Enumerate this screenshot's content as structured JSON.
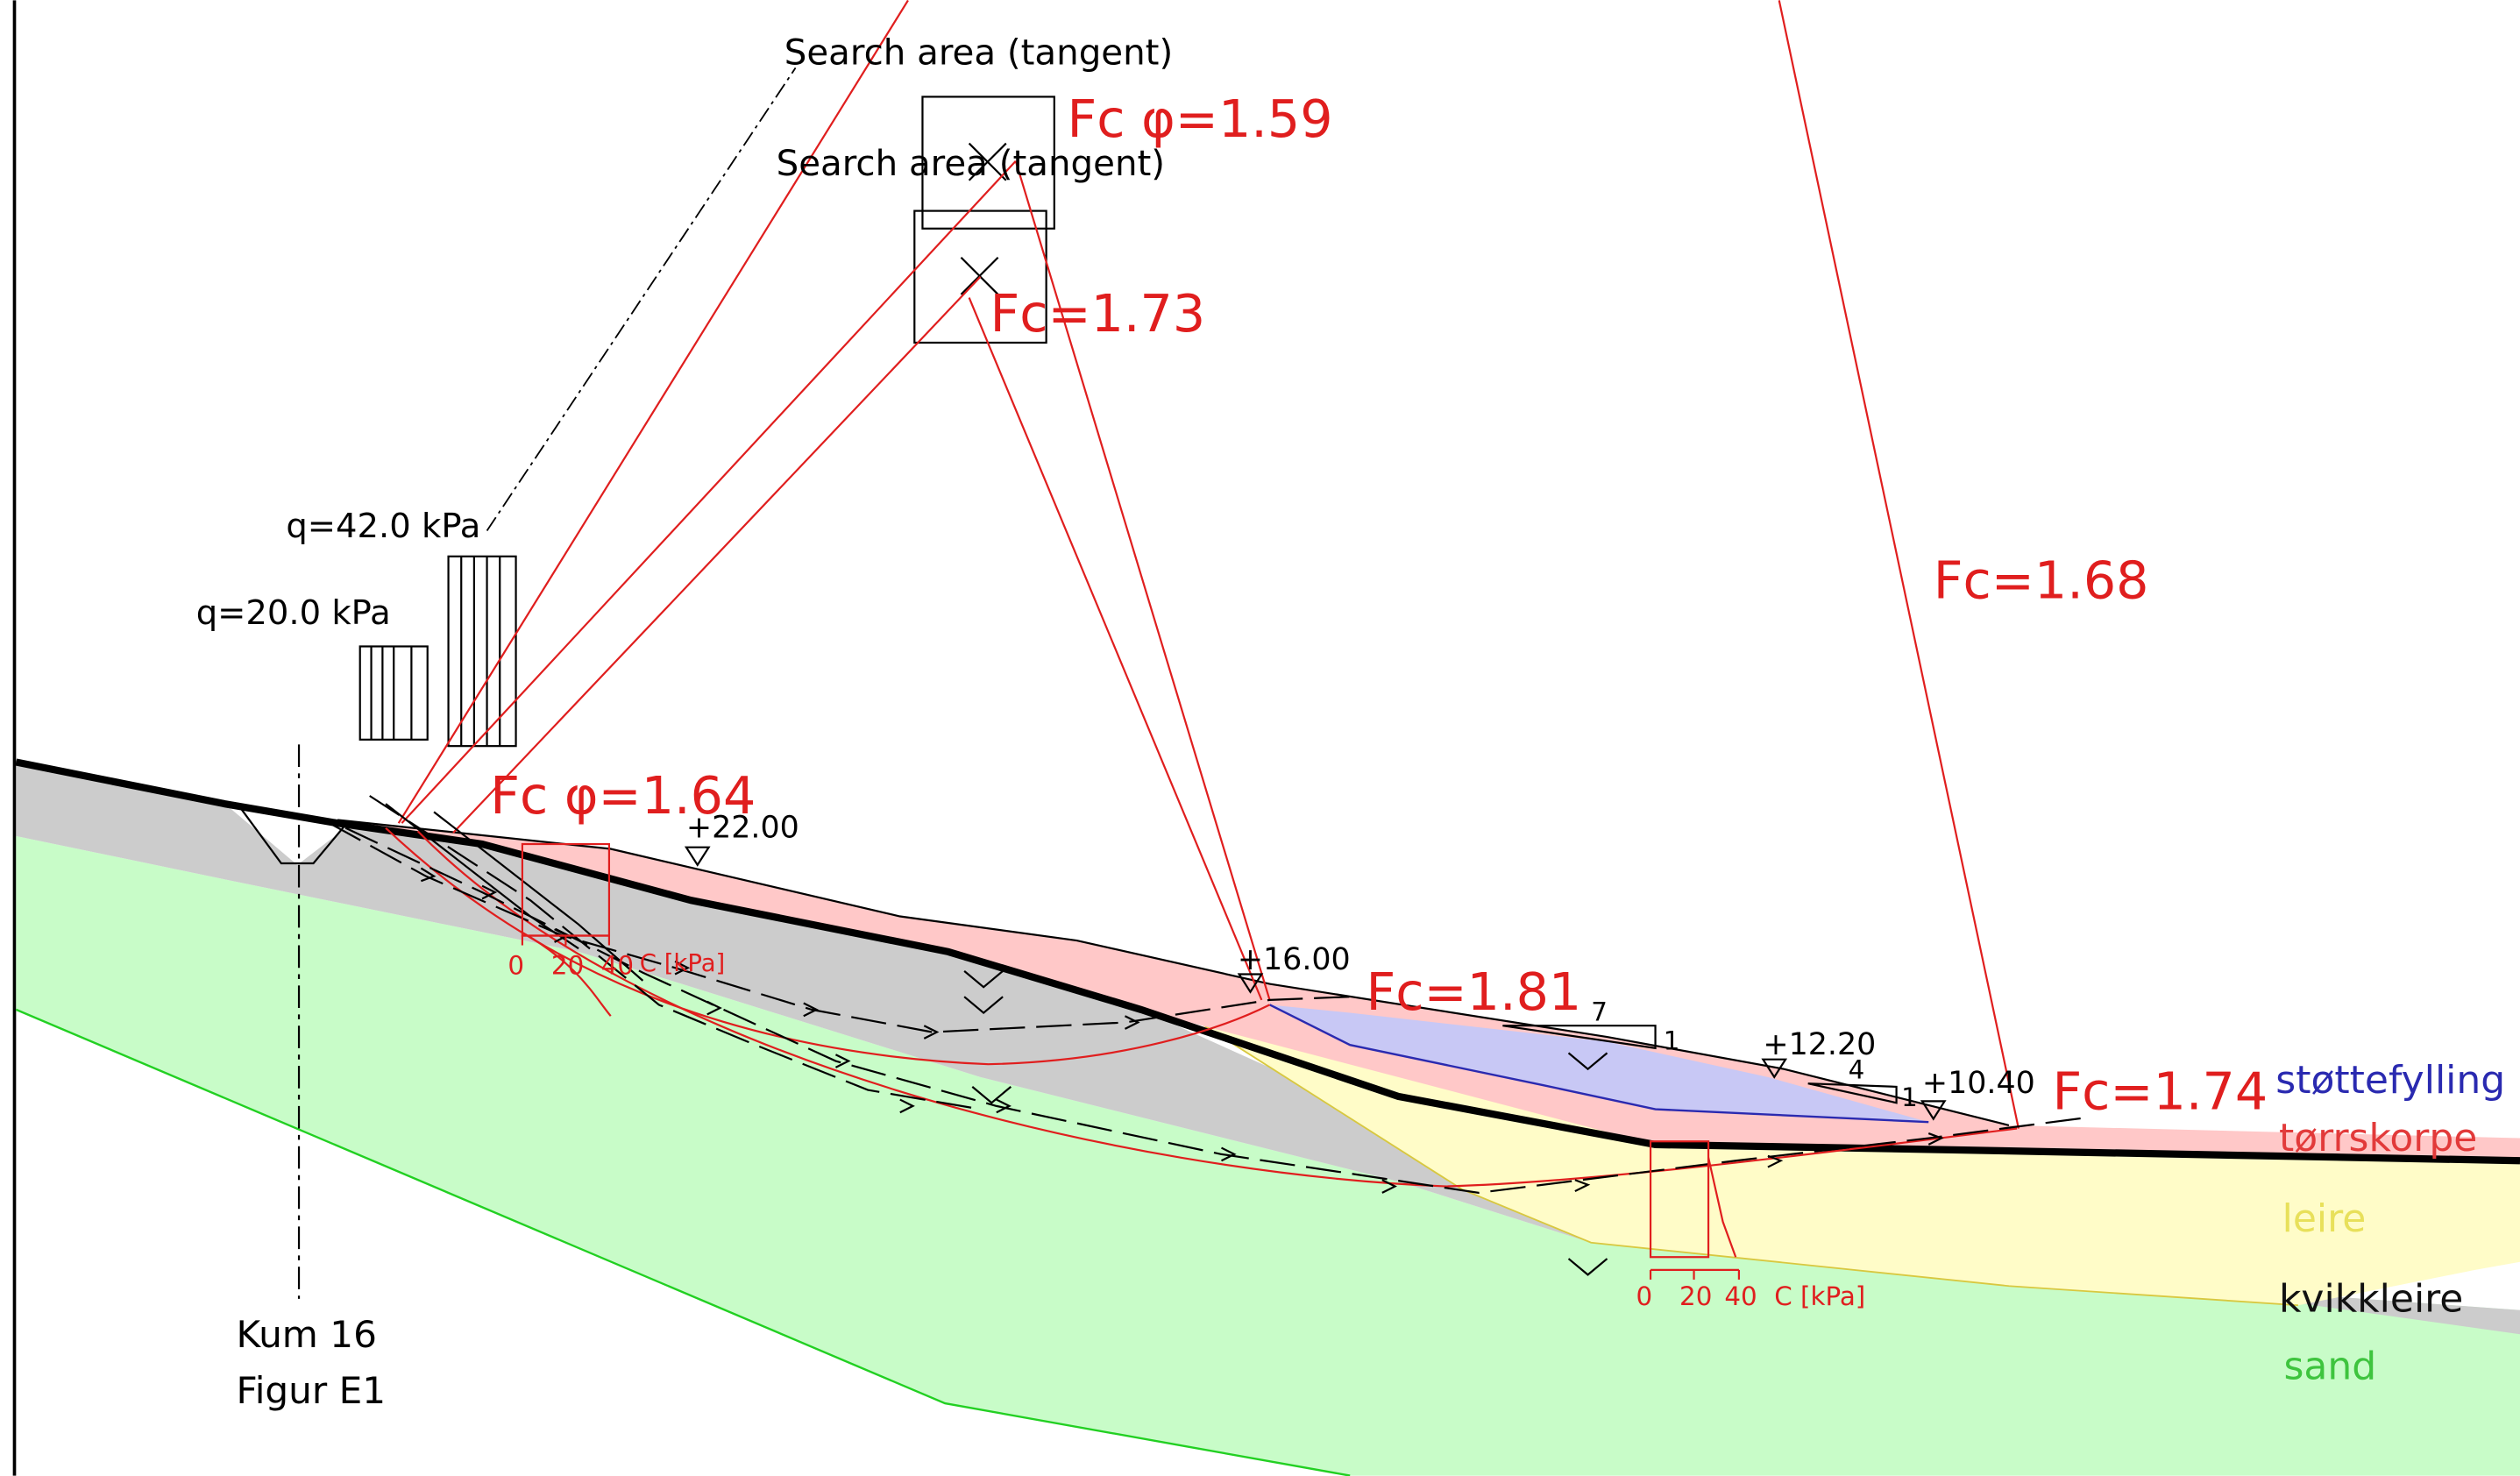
{
  "figure": {
    "search_area_1": "Search area (tangent)",
    "search_area_2": "Search area (tangent)",
    "load_1": "q=42.0 kPa",
    "load_2": "q=20.0 kPa",
    "fc_phi_159": "Fc φ=1.59",
    "fc_173": "Fc=1.73",
    "fc_168": "Fc=1.68",
    "fc_phi_164": "Fc φ=1.64",
    "fc_181": "Fc=1.81",
    "fc_174": "Fc=1.74",
    "elev_2200": "+22.00",
    "elev_1600": "+16.00",
    "elev_1220": "+12.20",
    "elev_1040": "+10.40",
    "slope_7": "7",
    "slope_1a": "1",
    "slope_4": "4",
    "slope_1b": "1",
    "scale1_0": "0",
    "scale1_20": "20",
    "scale1_40": "40",
    "scale1_unit": "C [kPa]",
    "scale2_0": "0",
    "scale2_20": "20",
    "scale2_40": "40",
    "scale2_unit": "C [kPa]",
    "kum": "Kum 16",
    "figur": "Figur E1"
  },
  "legend": [
    {
      "label": "støttefylling",
      "color": "#2a2ab0"
    },
    {
      "label": "tørrskorpe",
      "color": "#e23a3a"
    },
    {
      "label": "leire",
      "color": "#e8e05a"
    },
    {
      "label": "kvikkleire",
      "color": "#111111"
    },
    {
      "label": "sand",
      "color": "#3ec43e"
    }
  ],
  "colors": {
    "sand": "#c8fcc8",
    "kvikkleire": "#cccccc",
    "leire": "#fffcc8",
    "torrskorpe": "#ffc8c8",
    "stottefylling": "#c8c8f5",
    "red": "#e01e1e",
    "green_line": "#22d022"
  }
}
